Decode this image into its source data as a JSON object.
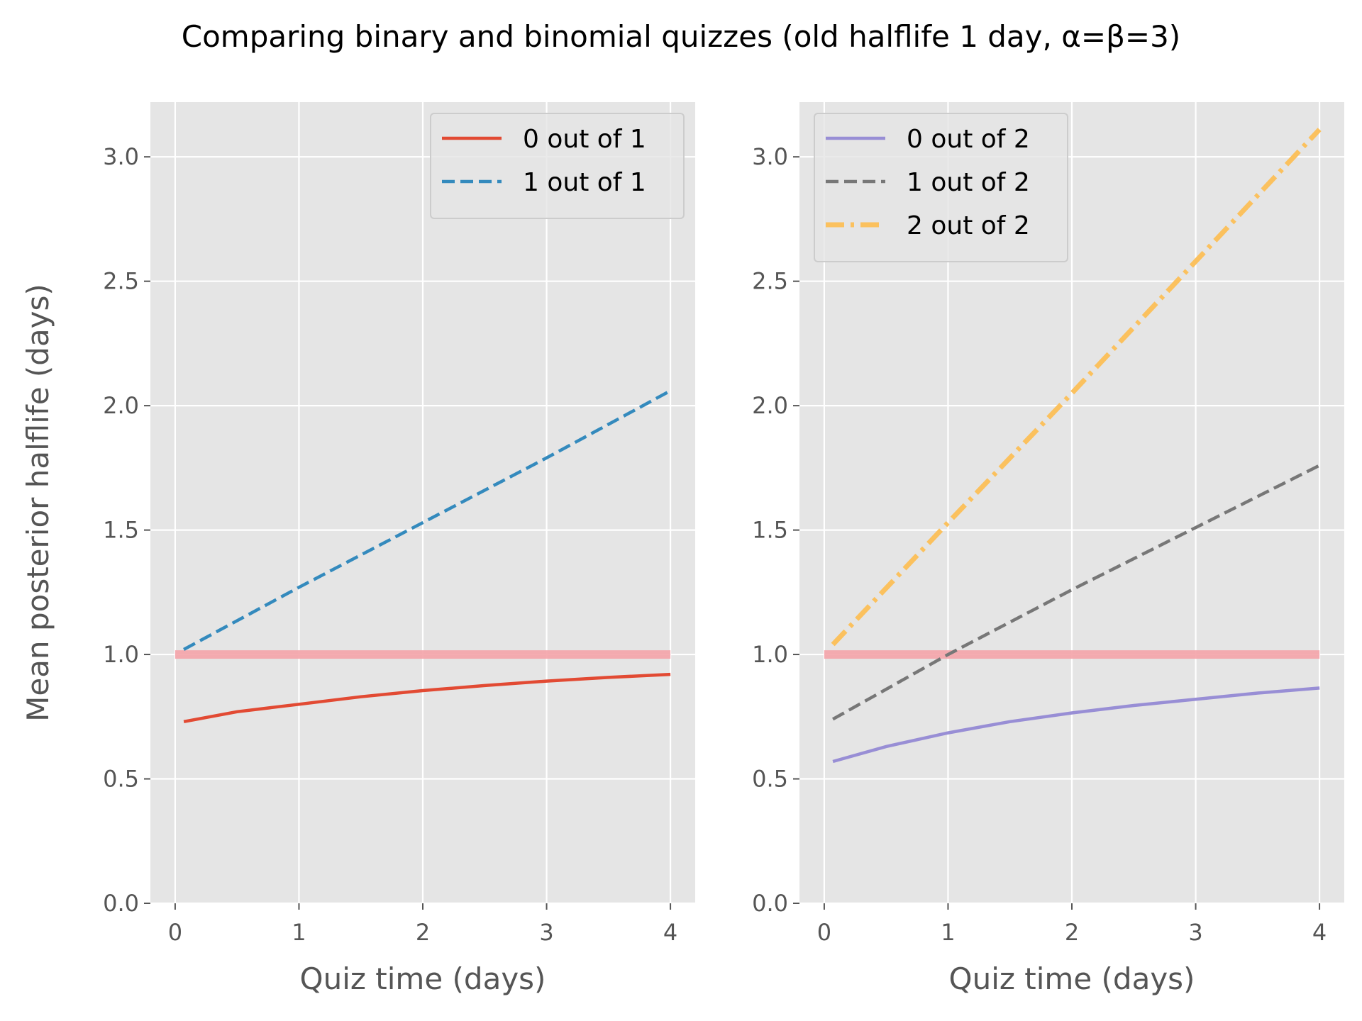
{
  "figure": {
    "title": "Comparing binary and binomial quizzes (old halflife 1 day, α=β=3)"
  },
  "chart_data": [
    {
      "type": "line",
      "xlabel": "Quiz time (days)",
      "ylabel": "Mean posterior halflife (days)",
      "xlim": [
        -0.2,
        4.2
      ],
      "ylim": [
        0,
        3.22
      ],
      "xticks": [
        0,
        1,
        2,
        3,
        4
      ],
      "yticks": [
        0.0,
        0.5,
        1.0,
        1.5,
        2.0,
        2.5,
        3.0
      ],
      "ytick_labels": [
        "0.0",
        "0.5",
        "1.0",
        "1.5",
        "2.0",
        "2.5",
        "3.0"
      ],
      "grid": true,
      "legend_placement": "top-right",
      "reference_line": {
        "y": 1.0,
        "x": [
          0,
          4
        ],
        "color": "#f4a3a8"
      },
      "series": [
        {
          "name": "0 out of 1",
          "color": "#e24a33",
          "style": "solid",
          "x": [
            0.07,
            0.5,
            1,
            1.5,
            2,
            2.5,
            3,
            3.5,
            4
          ],
          "y": [
            0.73,
            0.77,
            0.8,
            0.83,
            0.855,
            0.875,
            0.893,
            0.908,
            0.92
          ]
        },
        {
          "name": "1 out of 1",
          "color": "#348abd",
          "style": "dashed",
          "x": [
            0.07,
            1,
            2,
            3,
            4
          ],
          "y": [
            1.02,
            1.27,
            1.53,
            1.79,
            2.06
          ]
        }
      ]
    },
    {
      "type": "line",
      "xlabel": "Quiz time (days)",
      "ylabel": "",
      "xlim": [
        -0.2,
        4.2
      ],
      "ylim": [
        0,
        3.22
      ],
      "xticks": [
        0,
        1,
        2,
        3,
        4
      ],
      "yticks": [
        0.0,
        0.5,
        1.0,
        1.5,
        2.0,
        2.5,
        3.0
      ],
      "ytick_labels": [
        "0.0",
        "0.5",
        "1.0",
        "1.5",
        "2.0",
        "2.5",
        "3.0"
      ],
      "grid": true,
      "legend_placement": "top-left",
      "reference_line": {
        "y": 1.0,
        "x": [
          0,
          4
        ],
        "color": "#f4a3a8"
      },
      "series": [
        {
          "name": "0 out of 2",
          "color": "#988ed5",
          "style": "solid",
          "x": [
            0.07,
            0.5,
            1,
            1.5,
            2,
            2.5,
            3,
            3.5,
            4
          ],
          "y": [
            0.57,
            0.63,
            0.685,
            0.73,
            0.765,
            0.795,
            0.82,
            0.845,
            0.865
          ]
        },
        {
          "name": "1 out of 2",
          "color": "#777777",
          "style": "dashed",
          "x": [
            0.07,
            1,
            2,
            3,
            4
          ],
          "y": [
            0.74,
            1.0,
            1.26,
            1.51,
            1.76
          ]
        },
        {
          "name": "2 out of 2",
          "color": "#fbc15e",
          "style": "dashdot",
          "x": [
            0.07,
            1,
            2,
            3,
            4
          ],
          "y": [
            1.04,
            1.53,
            2.05,
            2.58,
            3.11
          ]
        }
      ]
    }
  ]
}
